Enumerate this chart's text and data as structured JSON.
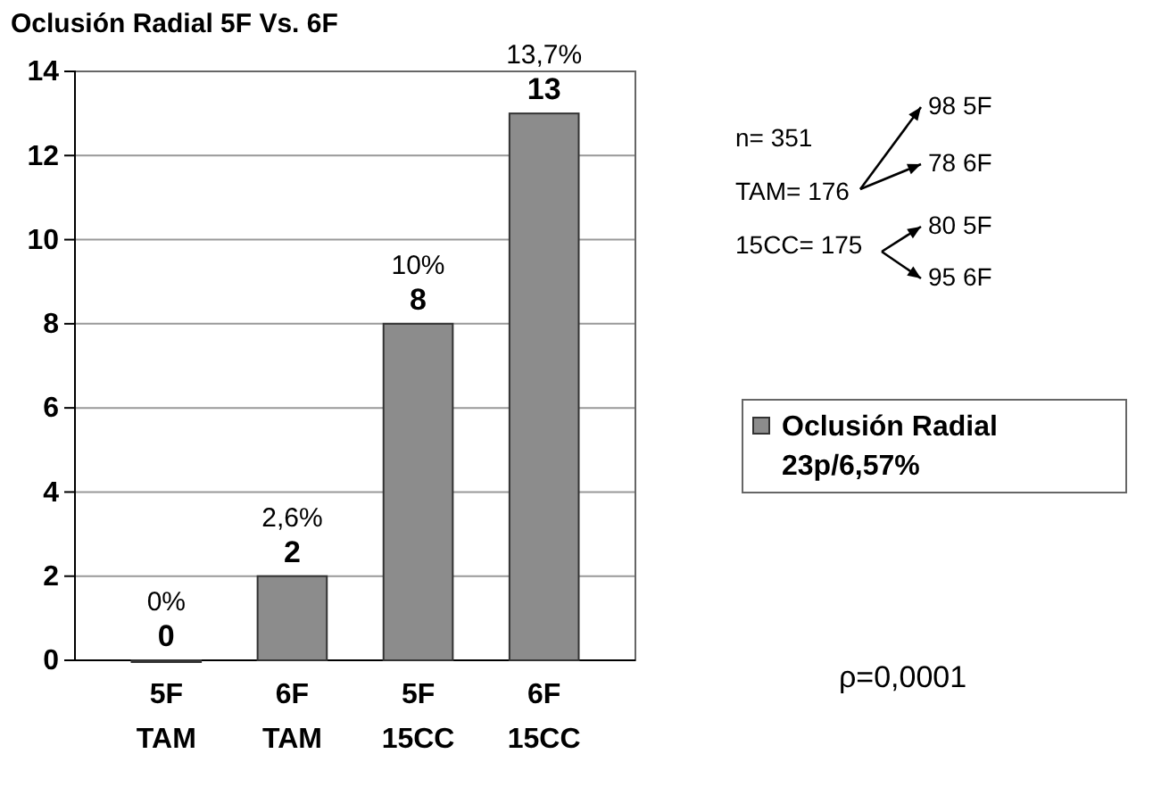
{
  "chart_data": {
    "type": "bar",
    "title": "Oclusión Radial 5F Vs. 6F",
    "categories": [
      "5F TAM",
      "6F TAM",
      "5F 15CC",
      "6F 15CC"
    ],
    "series": [
      {
        "name": "Oclusión Radial 23p/6,57%",
        "color": "#8c8c8c",
        "values": [
          0,
          2,
          8,
          13
        ]
      }
    ],
    "ylim": [
      0,
      14
    ],
    "yticks": [
      0,
      2,
      4,
      6,
      8,
      10,
      12,
      14
    ],
    "grid": "y",
    "legend": "right",
    "data_labels": true,
    "annotations": [
      {
        "text": "0%",
        "x": "5F TAM",
        "y": 0
      },
      {
        "text": "2,6%",
        "x": "6F TAM",
        "y": 2
      },
      {
        "text": "10%",
        "x": "5F 15CC",
        "y": 8
      },
      {
        "text": "13,7%",
        "x": "6F 15CC",
        "y": 13
      },
      "n= 351",
      "TAM= 176",
      "15CC= 175",
      "98 5F",
      "78 6F",
      "80 5F",
      "95 6F",
      "ρ=0,0001"
    ]
  }
}
